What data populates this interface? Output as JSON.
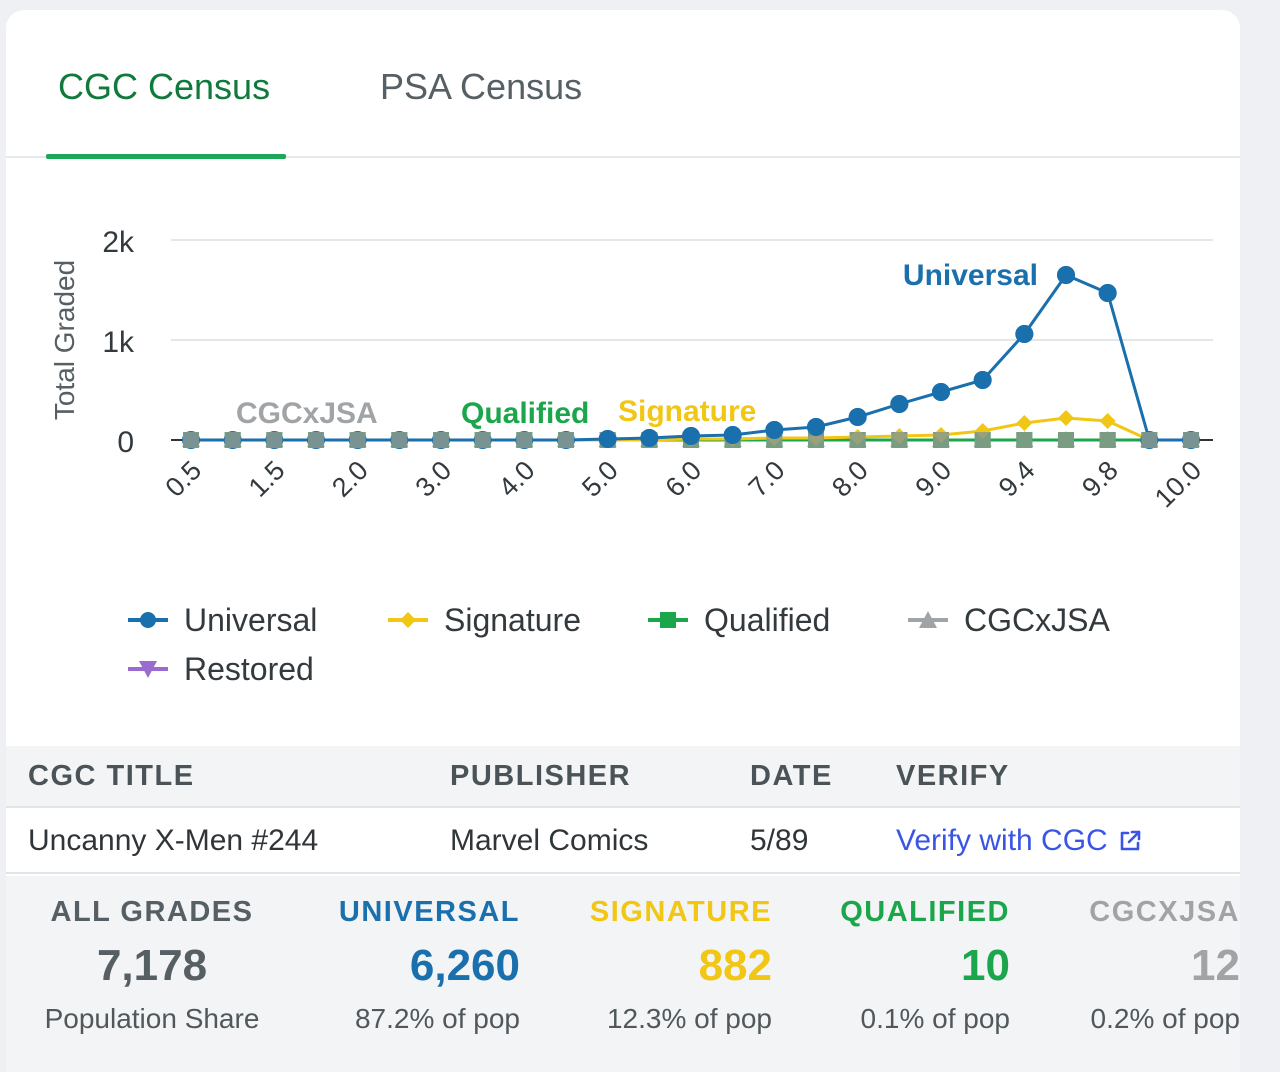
{
  "tabs": [
    {
      "label": "CGC Census",
      "active": true
    },
    {
      "label": "PSA Census",
      "active": false
    }
  ],
  "chart_data": {
    "type": "line",
    "ylabel": "Total Graded",
    "yticks": [
      "0",
      "1k",
      "2k"
    ],
    "ylim": [
      0,
      2000
    ],
    "x": [
      "0.5",
      "1.0",
      "1.5",
      "1.8",
      "2.0",
      "2.5",
      "3.0",
      "3.5",
      "4.0",
      "4.5",
      "5.0",
      "5.5",
      "6.0",
      "6.5",
      "7.0",
      "7.5",
      "8.0",
      "8.5",
      "9.0",
      "9.2",
      "9.4",
      "9.6",
      "9.8",
      "9.9",
      "10.0"
    ],
    "xtick_labels": [
      "0.5",
      "1.5",
      "2.0",
      "3.0",
      "4.0",
      "5.0",
      "6.0",
      "7.0",
      "8.0",
      "9.0",
      "9.4",
      "9.8",
      "10.0"
    ],
    "grid": true,
    "legend": "bottom",
    "series": [
      {
        "name": "Universal",
        "color": "#1a6fad",
        "marker": "circle",
        "values": [
          0,
          0,
          0,
          0,
          0,
          0,
          0,
          0,
          0,
          0,
          10,
          20,
          40,
          50,
          100,
          130,
          230,
          360,
          480,
          600,
          1060,
          1650,
          1470,
          0,
          0
        ]
      },
      {
        "name": "Signature",
        "color": "#f2c615",
        "marker": "diamond",
        "values": [
          0,
          0,
          0,
          0,
          0,
          0,
          0,
          0,
          0,
          0,
          0,
          0,
          10,
          10,
          20,
          20,
          30,
          40,
          50,
          90,
          170,
          220,
          190,
          0,
          0
        ]
      },
      {
        "name": "Qualified",
        "color": "#1ca64b",
        "marker": "square",
        "values": [
          0,
          0,
          0,
          0,
          0,
          0,
          0,
          0,
          0,
          0,
          0,
          0,
          0,
          0,
          0,
          0,
          0,
          0,
          0,
          0,
          0,
          0,
          0,
          0,
          0
        ]
      },
      {
        "name": "CGCxJSA",
        "color": "#a0a4a7",
        "marker": "triangle",
        "values": [
          0,
          0,
          0,
          0,
          0,
          0,
          0,
          0,
          0,
          0,
          0,
          0,
          0,
          0,
          0,
          0,
          0,
          0,
          0,
          0,
          0,
          0,
          0,
          0,
          0
        ]
      },
      {
        "name": "Restored",
        "color": "#9b6ccf",
        "marker": "triangle-down",
        "values": [
          0,
          0,
          0,
          0,
          0,
          0,
          0,
          0,
          0,
          0,
          0,
          0,
          0,
          0,
          0,
          0,
          0,
          0,
          0,
          0,
          0,
          0,
          0,
          0,
          0
        ]
      }
    ],
    "annotations": [
      {
        "text": "Universal",
        "color": "#1a6fad"
      },
      {
        "text": "Signature",
        "color": "#f2c615"
      },
      {
        "text": "Qualified",
        "color": "#1ca64b"
      },
      {
        "text": "CGCxJSA",
        "color": "#a0a4a7"
      }
    ]
  },
  "table": {
    "headers": [
      "CGC TITLE",
      "PUBLISHER",
      "DATE",
      "VERIFY"
    ],
    "row": {
      "title": "Uncanny X-Men #244",
      "publisher": "Marvel Comics",
      "date": "5/89",
      "verify_label": "Verify with CGC",
      "verify_icon": "external-link-icon"
    }
  },
  "stats": [
    {
      "label": "ALL GRADES",
      "value": "7,178",
      "share": "Population Share",
      "color": "#555f64"
    },
    {
      "label": "UNIVERSAL",
      "value": "6,260",
      "share": "87.2% of pop",
      "color": "#1a6fad"
    },
    {
      "label": "SIGNATURE",
      "value": "882",
      "share": "12.3% of pop",
      "color": "#f2c615"
    },
    {
      "label": "QUALIFIED",
      "value": "10",
      "share": "0.1% of pop",
      "color": "#1ca64b"
    },
    {
      "label": "CGCXJSA",
      "value": "12",
      "share": "0.2% of pop",
      "color": "#a0a4a7"
    }
  ]
}
